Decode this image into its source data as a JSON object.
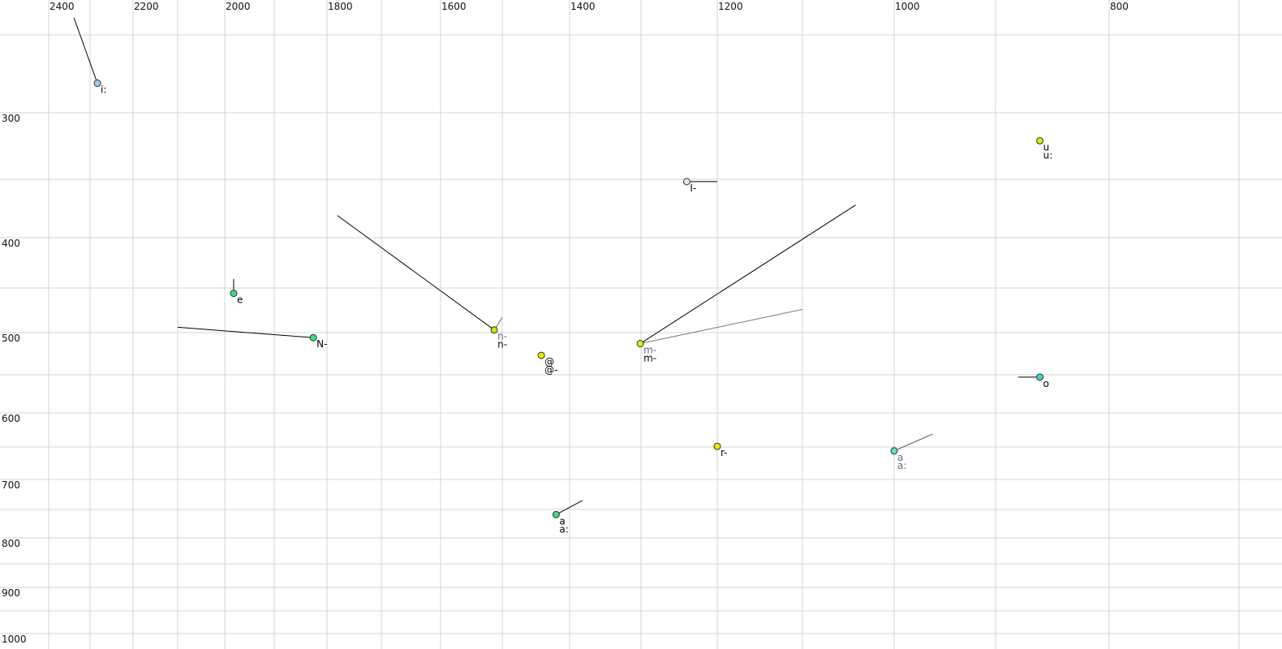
{
  "chart_data": {
    "type": "scatter",
    "title": "",
    "xlabel": "",
    "ylabel": "",
    "x_axis": {
      "reversed": true,
      "position": "top",
      "ticks": [
        2400,
        2200,
        2000,
        1800,
        1600,
        1400,
        1200,
        1000,
        800
      ],
      "gridlines": [
        2400,
        2300,
        2200,
        2100,
        2000,
        1900,
        1800,
        1700,
        1600,
        1500,
        1400,
        1300,
        1200,
        1100,
        1000,
        900,
        800,
        700
      ]
    },
    "y_axis": {
      "ticks": [
        300,
        400,
        500,
        600,
        700,
        800,
        900,
        1000
      ],
      "gridlines": [
        250,
        300,
        350,
        400,
        450,
        500,
        550,
        600,
        650,
        700,
        750,
        800,
        850,
        900,
        950,
        1000
      ]
    },
    "grid": true,
    "points": [
      {
        "x": 2283,
        "y": 281,
        "color": "#9ec9f0",
        "labels": [
          {
            "text": "i:",
            "color": "#000000"
          }
        ],
        "trajectories": [
          {
            "x": 2339,
            "y": 239,
            "color": "#000000"
          }
        ]
      },
      {
        "x": 1982,
        "y": 456,
        "color": "#3ddc84",
        "labels": [
          {
            "text": "e",
            "color": "#000000"
          }
        ],
        "trajectories": [
          {
            "x": 1982,
            "y": 441,
            "color": "#000000"
          }
        ]
      },
      {
        "x": 1826,
        "y": 506,
        "color": "#3ddc84",
        "labels": [
          {
            "text": "N-",
            "color": "#000000"
          }
        ],
        "trajectories": [
          {
            "x": 2100,
            "y": 494,
            "color": "#000000"
          }
        ]
      },
      {
        "x": 1513,
        "y": 497,
        "color": "#b8f000",
        "labels": [
          {
            "text": "n-",
            "color": "#666688"
          },
          {
            "text": "n-",
            "color": "#000000"
          }
        ],
        "trajectories": [
          {
            "x": 1781,
            "y": 381,
            "color": "#000000"
          },
          {
            "x": 1500,
            "y": 483,
            "color": "#777777"
          }
        ]
      },
      {
        "x": 1442,
        "y": 527,
        "color": "#e0f000",
        "labels": [
          {
            "text": "@",
            "color": "#000000"
          },
          {
            "text": "@-",
            "color": "#000000"
          }
        ],
        "trajectories": []
      },
      {
        "x": 1301,
        "y": 513,
        "color": "#d8f000",
        "labels": [
          {
            "text": "m-",
            "color": "#666688"
          },
          {
            "text": "m-",
            "color": "#000000"
          }
        ],
        "trajectories": [
          {
            "x": 1042,
            "y": 372,
            "color": "#000000"
          },
          {
            "x": 1100,
            "y": 474,
            "color": "#777777"
          }
        ]
      },
      {
        "x": 1240,
        "y": 352,
        "color": "#e4e4f0",
        "labels": [
          {
            "text": "I-",
            "color": "#000000"
          }
        ],
        "trajectories": [
          {
            "x": 1200,
            "y": 352,
            "color": "#000000"
          }
        ]
      },
      {
        "x": 861,
        "y": 321,
        "color": "#d0f000",
        "labels": [
          {
            "text": "u",
            "color": "#000000"
          },
          {
            "text": "u:",
            "color": "#000000"
          }
        ],
        "trajectories": []
      },
      {
        "x": 1200,
        "y": 649,
        "color": "#e8e800",
        "labels": [
          {
            "text": "r-",
            "color": "#000000"
          }
        ],
        "trajectories": []
      },
      {
        "x": 1000,
        "y": 656,
        "color": "#5ee8b0",
        "labels": [
          {
            "text": "a",
            "color": "#666688"
          },
          {
            "text": "a:",
            "color": "#666688"
          }
        ],
        "trajectories": [
          {
            "x": 962,
            "y": 631,
            "color": "#555555"
          }
        ]
      },
      {
        "x": 1420,
        "y": 759,
        "color": "#3ddc84",
        "labels": [
          {
            "text": "a",
            "color": "#000000"
          },
          {
            "text": "a:",
            "color": "#000000"
          }
        ],
        "trajectories": [
          {
            "x": 1382,
            "y": 735,
            "color": "#000000"
          }
        ]
      },
      {
        "x": 861,
        "y": 553,
        "color": "#40d8d0",
        "labels": [
          {
            "text": "o",
            "color": "#000000"
          }
        ],
        "trajectories": [
          {
            "x": 880,
            "y": 553,
            "color": "#000000"
          }
        ]
      }
    ]
  }
}
